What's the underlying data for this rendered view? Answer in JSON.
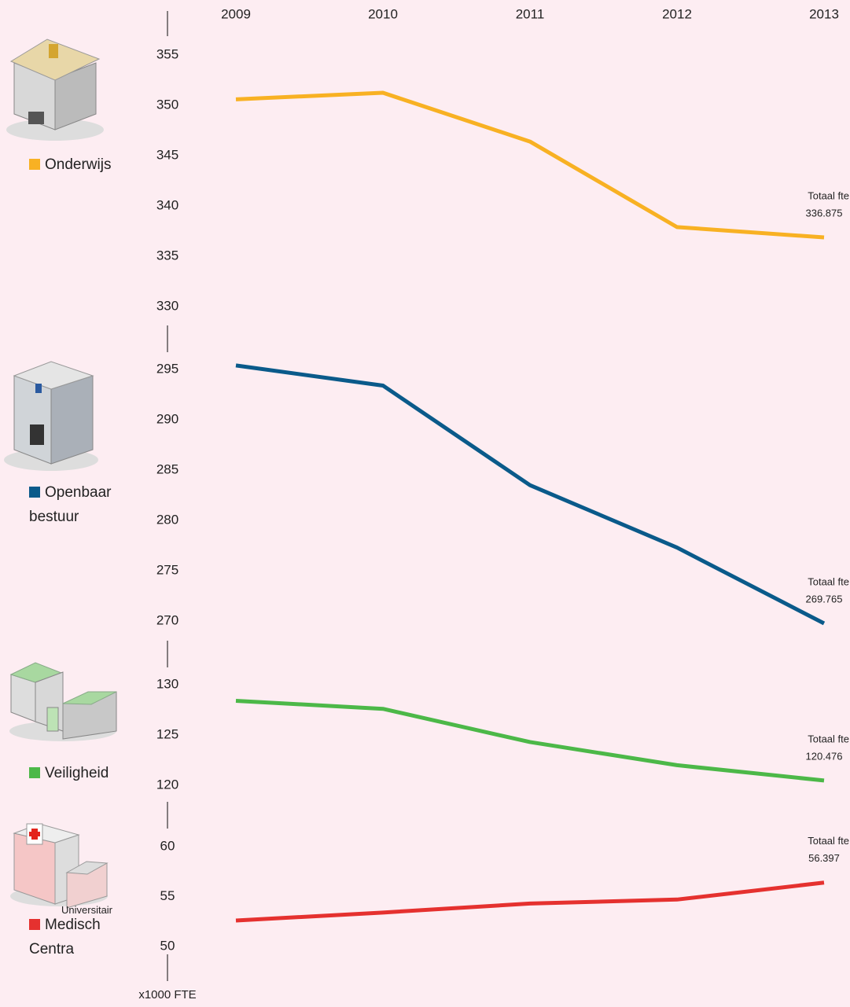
{
  "chart_data": [
    {
      "type": "line",
      "categories": [
        "2009",
        "2010",
        "2011",
        "2012",
        "2013"
      ],
      "series": [
        {
          "name": "Onderwijs",
          "color": "#f8b123",
          "values": [
            350.6,
            351.25,
            346.4,
            337.9,
            336.875
          ]
        }
      ],
      "ylim": [
        330,
        355
      ],
      "yticks": [
        330,
        335,
        340,
        345,
        350,
        355
      ],
      "annotation": "Totaal fte"
    },
    {
      "type": "line",
      "series": [
        {
          "name": "Openbaar bestuur",
          "color": "#0a5a8a",
          "values": [
            295.4,
            293.4,
            283.5,
            277.3,
            269.765
          ]
        }
      ],
      "ylim": [
        270,
        295
      ],
      "yticks": [
        270,
        275,
        280,
        285,
        290,
        295
      ],
      "annotation": "Totaal fte"
    },
    {
      "type": "line",
      "series": [
        {
          "name": "Veiligheid",
          "color": "#4cb848",
          "values": [
            128.4,
            127.6,
            124.3,
            122.0,
            120.476
          ]
        }
      ],
      "ylim": [
        120,
        130
      ],
      "yticks": [
        120,
        125,
        130
      ],
      "annotation": "Totaal fte"
    },
    {
      "type": "line",
      "series": [
        {
          "name": "Medisch Centra",
          "color": "#e5312f",
          "values": [
            52.6,
            53.4,
            54.3,
            54.7,
            56.397
          ]
        }
      ],
      "legend_note": "Universitair",
      "ylim": [
        50,
        60
      ],
      "yticks": [
        50,
        55,
        60
      ],
      "annotation": "Totaal fte",
      "ylabel": "x1000 FTE"
    }
  ]
}
